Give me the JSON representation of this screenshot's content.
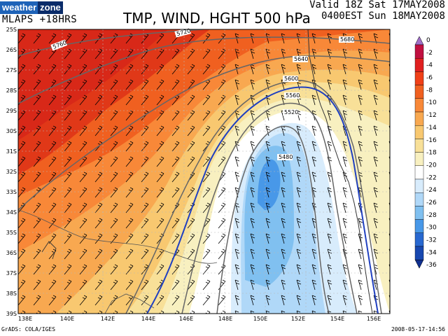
{
  "header": {
    "logo_part1": "weather",
    "logo_part2": "zone",
    "model": "MLAPS +18HRS",
    "title": "TMP, WIND, HGHT 500 hPa",
    "valid_line1": "Valid 18Z Sat 17MAY2008",
    "valid_line2": "0400EST Sun 18MAY2008"
  },
  "map": {
    "lat_labels": [
      "25S",
      "26S",
      "27S",
      "28S",
      "29S",
      "30S",
      "31S",
      "32S",
      "33S",
      "34S",
      "35S",
      "36S",
      "37S",
      "38S",
      "39S"
    ],
    "lon_labels": [
      "138E",
      "140E",
      "142E",
      "144E",
      "146E",
      "148E",
      "150E",
      "152E",
      "154E",
      "156E"
    ],
    "contour_labels": [
      "5760",
      "5720",
      "5680",
      "5640",
      "5600",
      "5560",
      "5520",
      "5480"
    ]
  },
  "colorbar": {
    "labels": [
      "0",
      "-2",
      "-4",
      "-6",
      "-8",
      "-10",
      "-12",
      "-14",
      "-16",
      "-18",
      "-20",
      "-22",
      "-24",
      "-26",
      "-28",
      "-30",
      "-32",
      "-34",
      "-36"
    ],
    "colors": [
      "#a070c8",
      "#c01040",
      "#e02020",
      "#f04018",
      "#f06020",
      "#f88838",
      "#f8a850",
      "#f8c870",
      "#f8e098",
      "#f8f0c0",
      "#ffffff",
      "#d8ecfc",
      "#b0d8f8",
      "#80c0f0",
      "#4898e8",
      "#2868d0",
      "#1848b0",
      "#103090"
    ]
  },
  "footer": {
    "left": "GrADS: COLA/IGES",
    "right": "2008-05-17-14:56"
  }
}
